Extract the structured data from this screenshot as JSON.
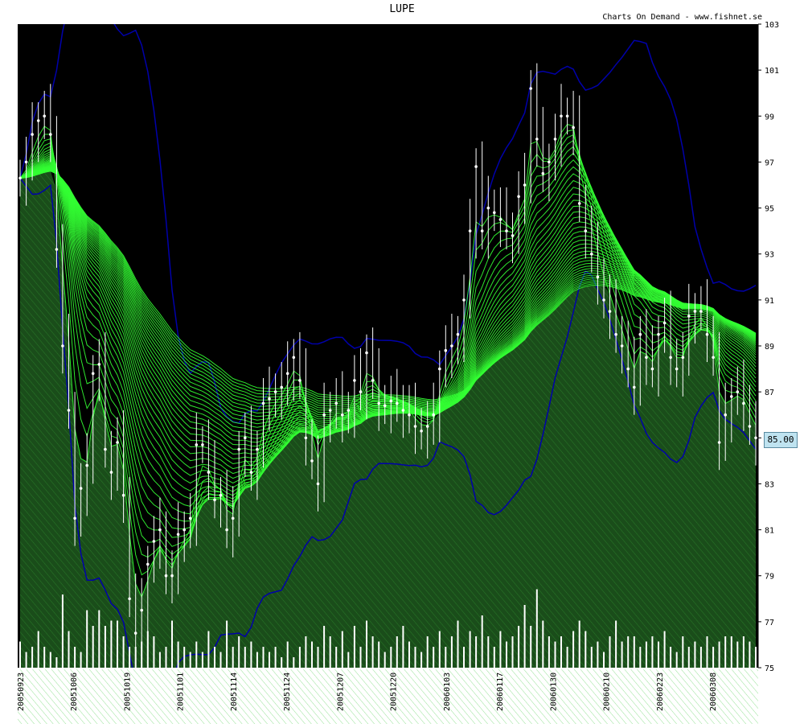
{
  "chart_data": {
    "type": "line",
    "title": "LUPE",
    "subtitle": "Charts On Demand - www.fishnet.se",
    "last_price_label": "85.00",
    "ylim": [
      75,
      103
    ],
    "yticks": [
      "75",
      "77",
      "79",
      "81",
      "83",
      "85",
      "87",
      "89",
      "91",
      "93",
      "95",
      "97",
      "99",
      "101",
      "103"
    ],
    "xlabels": [
      "20050923",
      "20051006",
      "20051019",
      "20051101",
      "20051114",
      "20051124",
      "20051207",
      "20051220",
      "20060103",
      "20060117",
      "20060130",
      "20060210",
      "20060223",
      "20060308"
    ],
    "close": [
      96.3,
      97,
      98.2,
      98.8,
      99,
      98.2,
      93.2,
      89,
      86.2,
      81.5,
      82.8,
      83.8,
      87.8,
      88.2,
      84.5,
      83.5,
      84.8,
      82.5,
      78,
      76.5,
      77.5,
      79.5,
      80.5,
      81,
      79,
      79,
      80.8,
      81,
      81.5,
      84.7,
      84.7,
      83.5,
      82.3,
      82.5,
      81,
      81.5,
      84.5,
      85,
      83.5,
      84.5,
      86.5,
      86.7,
      87,
      87.2,
      87.8,
      88.5,
      87.5,
      85,
      84,
      83,
      86,
      86.2,
      86.5,
      86,
      86.2,
      87.5,
      87,
      88.7,
      87.5,
      86.5,
      86.4,
      86.6,
      86.5,
      86.2,
      86,
      85.5,
      85.3,
      85.5,
      86,
      88,
      88.8,
      89,
      89.5,
      91,
      94,
      96.8,
      94,
      95,
      94.8,
      94.5,
      94,
      93.8,
      95.5,
      96,
      100.2,
      98,
      96.5,
      97,
      98,
      99,
      99,
      98.5,
      95.2,
      94,
      93,
      92,
      91,
      90.5,
      89.5,
      89,
      88,
      87.2,
      89.5,
      88.5,
      88,
      89.5,
      90,
      88.5,
      88,
      88.5,
      90.3,
      90.5,
      90.5,
      89.5,
      88.5,
      84.8,
      86,
      86.8,
      87,
      86.5,
      85.5,
      85
    ],
    "volume": [
      0.25,
      0.15,
      0.2,
      0.35,
      0.2,
      0.15,
      0.1,
      0.7,
      0.35,
      0.2,
      0.15,
      0.55,
      0.4,
      0.55,
      0.4,
      0.45,
      0.45,
      0.3,
      0.2,
      0.2,
      0.25,
      0.35,
      0.3,
      0.15,
      0.2,
      0.45,
      0.25,
      0.2,
      0.15,
      0.25,
      0.15,
      0.35,
      0.2,
      0.15,
      0.45,
      0.2,
      0.3,
      0.2,
      0.25,
      0.15,
      0.2,
      0.15,
      0.2,
      0.1,
      0.25,
      0.1,
      0.2,
      0.3,
      0.25,
      0.2,
      0.4,
      0.3,
      0.2,
      0.35,
      0.15,
      0.4,
      0.2,
      0.45,
      0.3,
      0.25,
      0.15,
      0.2,
      0.3,
      0.4,
      0.25,
      0.2,
      0.15,
      0.3,
      0.2,
      0.35,
      0.2,
      0.3,
      0.45,
      0.2,
      0.35,
      0.3,
      0.5,
      0.3,
      0.2,
      0.35,
      0.25,
      0.3,
      0.4,
      0.6,
      0.4,
      0.75,
      0.45,
      0.3,
      0.25,
      0.3,
      0.2,
      0.35,
      0.45,
      0.35,
      0.2,
      0.25,
      0.15,
      0.3,
      0.45,
      0.25,
      0.3,
      0.3,
      0.2,
      0.25,
      0.3,
      0.25,
      0.35,
      0.2,
      0.15,
      0.3,
      0.2,
      0.25,
      0.2,
      0.3,
      0.2,
      0.25,
      0.3,
      0.3,
      0.25,
      0.3,
      0.25,
      0.2
    ],
    "colors": {
      "background": "#000000",
      "ribbon": "#33ff33",
      "ribbon_fill": "#1a4d1a",
      "bollinger": "#0000aa",
      "price_bars": "#ffffff",
      "volume": "#ffffff"
    }
  }
}
